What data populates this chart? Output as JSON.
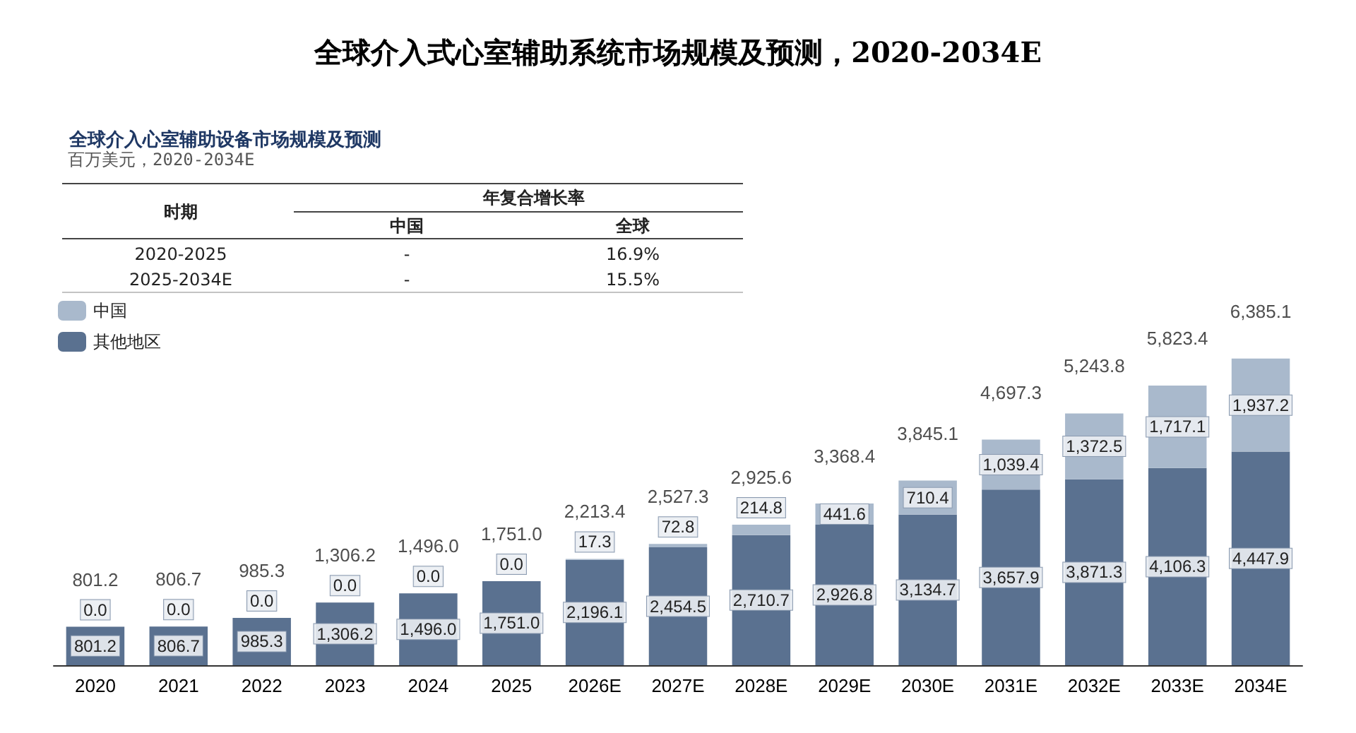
{
  "chart_data": {
    "type": "bar",
    "title": "全球介入式心室辅助系统市场规模及预测，2020-2034E",
    "subtitle": "全球介入心室辅助设备市场规模及预测",
    "categories": [
      "2020",
      "2021",
      "2022",
      "2023",
      "2024",
      "2025",
      "2026E",
      "2027E",
      "2028E",
      "2029E",
      "2030E",
      "2031E",
      "2032E",
      "2033E",
      "2034E"
    ],
    "stacked": true,
    "series": [
      {
        "name": "其他地区",
        "color": "#5a7190",
        "values": [
          801.2,
          806.7,
          985.3,
          1306.2,
          1496.0,
          1751.0,
          2196.1,
          2454.5,
          2710.7,
          2926.8,
          3134.7,
          3657.9,
          3871.3,
          4106.3,
          4447.9
        ],
        "value_labels": [
          "801.2",
          "806.7",
          "985.3",
          "1,306.2",
          "1,496.0",
          "1,751.0",
          "2,196.1",
          "2,454.5",
          "2,710.7",
          "2,926.8",
          "3,134.7",
          "3,657.9",
          "3,871.3",
          "4,106.3",
          "4,447.9"
        ]
      },
      {
        "name": "中国",
        "color": "#a9b9cc",
        "values": [
          0.0,
          0.0,
          0.0,
          0.0,
          0.0,
          0.0,
          17.3,
          72.8,
          214.8,
          441.6,
          710.4,
          1039.4,
          1372.5,
          1717.1,
          1937.2
        ],
        "value_labels": [
          "0.0",
          "0.0",
          "0.0",
          "0.0",
          "0.0",
          "0.0",
          "17.3",
          "72.8",
          "214.8",
          "441.6",
          "710.4",
          "1,039.4",
          "1,372.5",
          "1,717.1",
          "1,937.2"
        ]
      }
    ],
    "totals": [
      "801.2",
      "806.7",
      "985.3",
      "1,306.2",
      "1,496.0",
      "1,751.0",
      "2,213.4",
      "2,527.3",
      "2,925.6",
      "3,368.4",
      "3,845.1",
      "4,697.3",
      "5,243.8",
      "5,823.4",
      "6,385.1"
    ],
    "legend": "top left",
    "tick_labels": "x",
    "grid": false,
    "annotations": [
      "时期",
      "年复合增长率",
      "中国",
      "全球",
      "2020-2025",
      "-",
      "16.9%",
      "2025-2034E",
      "-",
      "15.5%",
      "百万美元，2020-2034E"
    ]
  }
}
